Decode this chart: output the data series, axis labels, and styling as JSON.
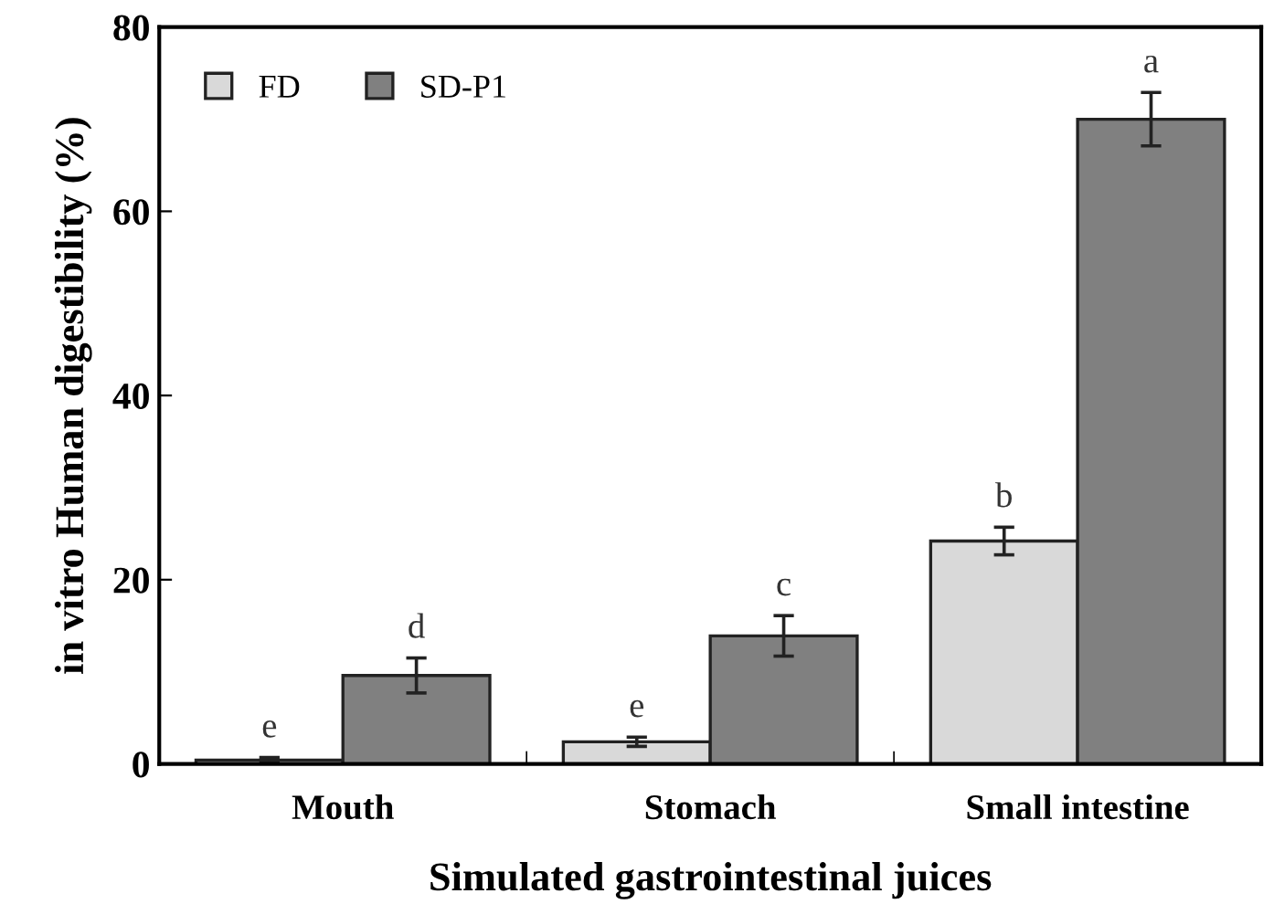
{
  "chart_data": {
    "type": "bar",
    "xlabel": "Simulated gastrointestinal juices",
    "ylabel": "in vitro Human digestibility (%)",
    "categories": [
      "Mouth",
      "Stomach",
      "Small intestine"
    ],
    "series": [
      {
        "name": "FD",
        "color": "#d9d9d9",
        "values": [
          0.4,
          2.4,
          24.2
        ],
        "errors": [
          0.3,
          0.5,
          1.5
        ],
        "value_labels": [
          "e",
          "e",
          "b"
        ]
      },
      {
        "name": "SD-P1",
        "color": "#808080",
        "values": [
          9.6,
          13.9,
          70.0
        ],
        "errors": [
          1.9,
          2.2,
          2.9
        ],
        "value_labels": [
          "d",
          "c",
          "a"
        ]
      }
    ],
    "ylim": [
      0,
      80
    ],
    "yticks": [
      0,
      20,
      40,
      60,
      80
    ],
    "grid": false,
    "legend": "top left"
  }
}
